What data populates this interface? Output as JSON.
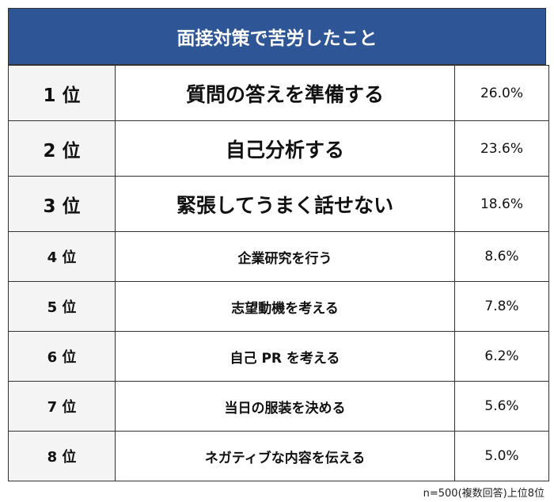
{
  "header": {
    "title": "面接対策で苦労したこと"
  },
  "table": {
    "rows": [
      [
        "1 位",
        "質問の答えを準備する",
        "26.0%"
      ],
      [
        "2 位",
        "自己分析する",
        "23.6%"
      ],
      [
        "3 位",
        "緊張してうまく話せない",
        "18.6%"
      ],
      [
        "4 位",
        "企業研究を行う",
        "8.6%"
      ],
      [
        "5 位",
        "志望動機を考える",
        "7.8%"
      ],
      [
        "6 位",
        "自己 PR を考える",
        "6.2%"
      ],
      [
        "7 位",
        "当日の服装を決める",
        "5.6%"
      ],
      [
        "8 位",
        "ネガティブな内容を伝える",
        "5.0%"
      ]
    ]
  },
  "footnote": "n=500(複数回答)上位8位"
}
